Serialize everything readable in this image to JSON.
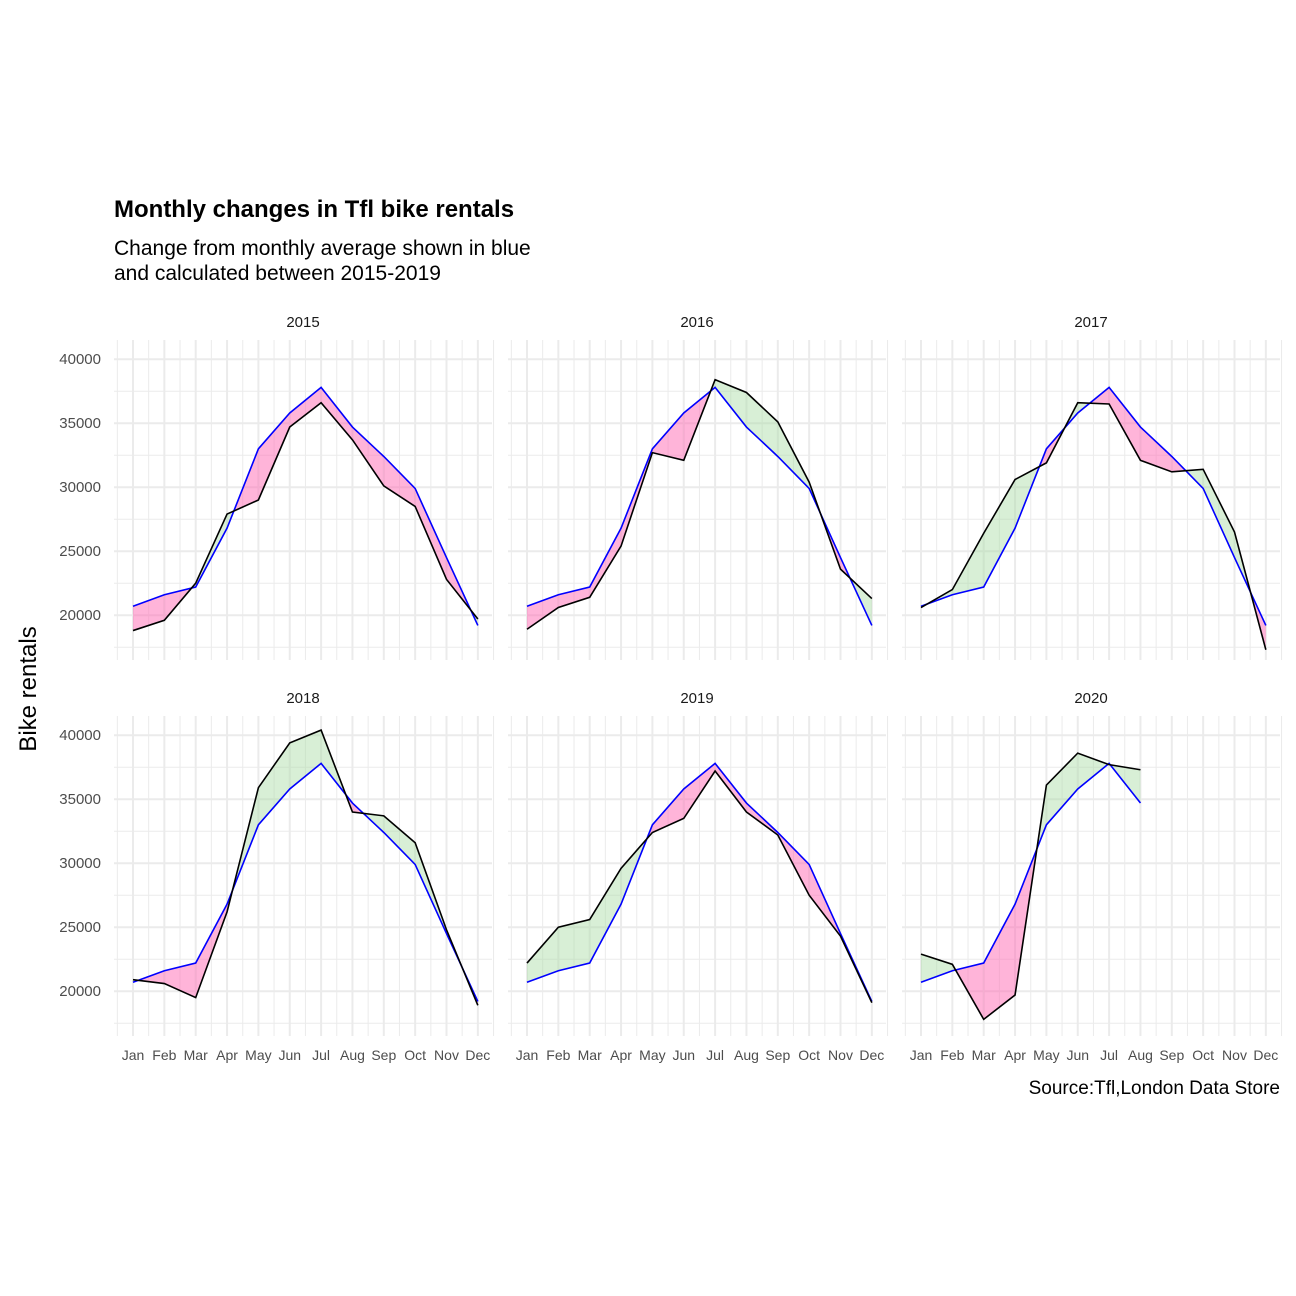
{
  "chart_data": {
    "type": "line",
    "title": "Monthly changes in Tfl bike rentals",
    "subtitle_lines": [
      "Change from monthly average shown in blue",
      "and calculated between 2015-2019"
    ],
    "ylabel": "Bike rentals",
    "xlabel": "",
    "caption": "Source:Tfl,London Data Store",
    "months": [
      "Jan",
      "Feb",
      "Mar",
      "Apr",
      "May",
      "Jun",
      "Jul",
      "Aug",
      "Sep",
      "Oct",
      "Nov",
      "Dec"
    ],
    "ylim": [
      16500,
      41500
    ],
    "yticks": [
      20000,
      25000,
      30000,
      35000,
      40000
    ],
    "grid": true,
    "colors": {
      "average_line": "#0000ff",
      "actual_line": "#000000",
      "below_average_fill": "#ff69b4",
      "above_average_fill": "#a8dca3",
      "grid": "#ebebeb"
    },
    "average": [
      20700,
      21600,
      22200,
      26800,
      33000,
      35800,
      37800,
      34700,
      32400,
      29900,
      24500,
      19200
    ],
    "facets": [
      {
        "year": "2015",
        "actual": [
          18800,
          19600,
          22500,
          27900,
          29000,
          34700,
          36600,
          33700,
          30100,
          28500,
          22800,
          19700
        ]
      },
      {
        "year": "2016",
        "actual": [
          18900,
          20600,
          21400,
          25400,
          32700,
          32100,
          38400,
          37400,
          35100,
          30400,
          23600,
          21300
        ]
      },
      {
        "year": "2017",
        "actual": [
          20600,
          22000,
          26400,
          30600,
          31900,
          36600,
          36500,
          32100,
          31200,
          31400,
          26500,
          17300
        ]
      },
      {
        "year": "2018",
        "actual": [
          20900,
          20600,
          19500,
          26200,
          35900,
          39400,
          40400,
          34000,
          33700,
          31600,
          24800,
          18900
        ]
      },
      {
        "year": "2019",
        "actual": [
          22200,
          25000,
          25600,
          29600,
          32400,
          33500,
          37200,
          34000,
          32200,
          27500,
          24300,
          19100
        ]
      },
      {
        "year": "2020",
        "actual": [
          22900,
          22100,
          17800,
          19700,
          36100,
          38600,
          37700,
          37300,
          null,
          null,
          null,
          null
        ]
      }
    ]
  }
}
